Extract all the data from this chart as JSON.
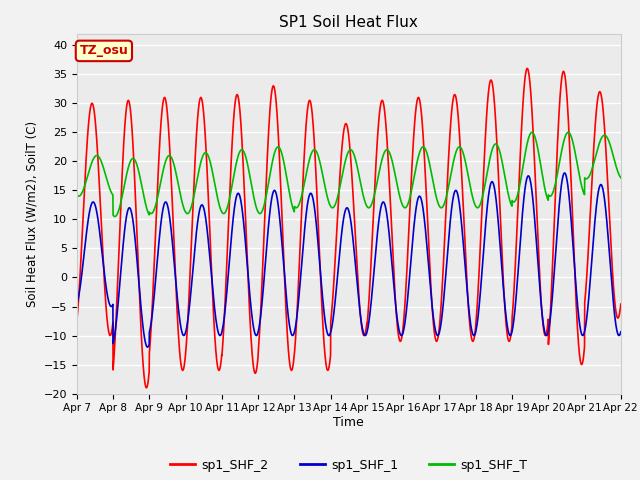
{
  "title": "SP1 Soil Heat Flux",
  "xlabel": "Time",
  "ylabel": "Soil Heat Flux (W/m2), SoilT (C)",
  "ylim": [
    -20,
    42
  ],
  "yticks": [
    -20,
    -15,
    -10,
    -5,
    0,
    5,
    10,
    15,
    20,
    25,
    30,
    35,
    40
  ],
  "xtick_labels": [
    "Apr 7",
    "Apr 8",
    "Apr 9",
    "Apr 10",
    "Apr 11",
    "Apr 12",
    "Apr 13",
    "Apr 14",
    "Apr 15",
    "Apr 16",
    "Apr 17",
    "Apr 18",
    "Apr 19",
    "Apr 20",
    "Apr 21",
    "Apr 22"
  ],
  "n_days": 15,
  "plot_bg_color": "#ebebeb",
  "fig_bg_color": "#f2f2f2",
  "grid_color": "#ffffff",
  "colors": {
    "sp1_SHF_2": "#ff0000",
    "sp1_SHF_1": "#0000cc",
    "sp1_SHF_T": "#00bb00"
  },
  "legend_labels": [
    "sp1_SHF_2",
    "sp1_SHF_1",
    "sp1_SHF_T"
  ],
  "tz_label": "TZ_osu",
  "tz_bg": "#ffffcc",
  "tz_edge": "#cc0000",
  "line_width": 1.2,
  "shf2_max": [
    30,
    30.5,
    31,
    31,
    31.5,
    33,
    30.5,
    26.5,
    30.5,
    31,
    31.5,
    34,
    36,
    35.5,
    32
  ],
  "shf2_min": [
    -10,
    -19,
    -16,
    -16,
    -16.5,
    -16,
    -16,
    -10,
    -11,
    -11,
    -11,
    -11,
    -10,
    -15,
    -7
  ],
  "shf1_max": [
    13,
    12,
    13,
    12.5,
    14.5,
    15,
    14.5,
    12,
    13,
    14,
    15,
    16.5,
    17.5,
    18,
    16
  ],
  "shf1_min": [
    -5,
    -12,
    -10,
    -10,
    -10,
    -10,
    -10,
    -10,
    -10,
    -10,
    -10,
    -10,
    -10,
    -10,
    -10
  ],
  "shft_max": [
    21,
    20.5,
    21,
    21.5,
    22,
    22.5,
    22,
    22,
    22,
    22.5,
    22.5,
    23,
    25,
    25,
    24.5
  ],
  "shft_min": [
    14,
    10.5,
    11,
    11,
    11,
    11,
    12,
    12,
    12,
    12,
    12,
    12,
    13,
    14,
    17
  ]
}
